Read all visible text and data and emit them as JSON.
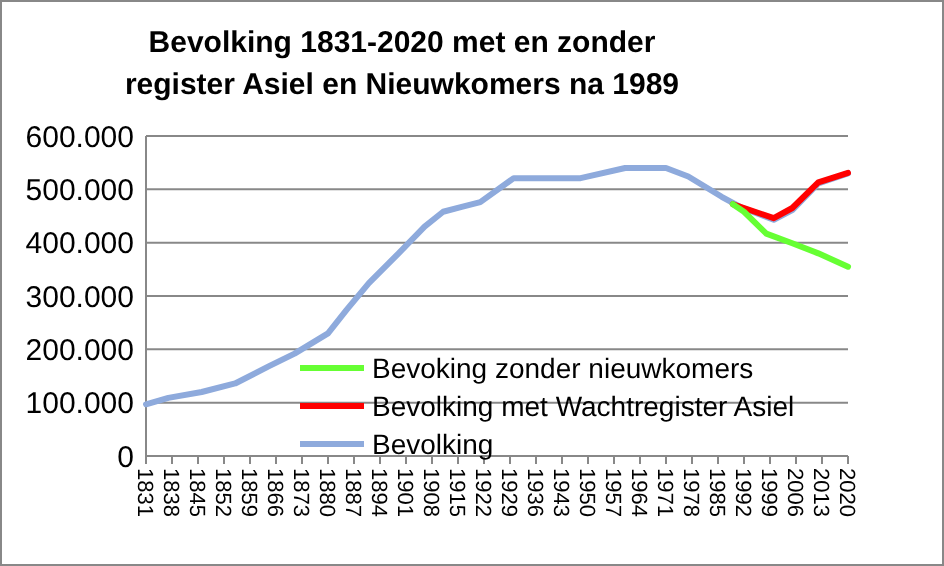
{
  "chart_data": {
    "type": "line",
    "title": "Bevolking 1831-2020 met en zonder\nregister  Asiel en Nieuwkomers na 1989",
    "xlim": [
      1831,
      2020
    ],
    "xticks": [
      1831,
      1838,
      1845,
      1852,
      1859,
      1866,
      1873,
      1880,
      1887,
      1894,
      1901,
      1908,
      1915,
      1922,
      1929,
      1936,
      1943,
      1950,
      1957,
      1964,
      1971,
      1978,
      1985,
      1992,
      1999,
      2006,
      2013,
      2020
    ],
    "ylim": [
      0,
      600000
    ],
    "yticks": [
      {
        "value": 0,
        "label": "0"
      },
      {
        "value": 100000,
        "label": "100.000"
      },
      {
        "value": 200000,
        "label": "200.000"
      },
      {
        "value": 300000,
        "label": "300.000"
      },
      {
        "value": 400000,
        "label": "400.000"
      },
      {
        "value": 500000,
        "label": "500.000"
      },
      {
        "value": 600000,
        "label": "600.000"
      }
    ],
    "grid": "y",
    "legend": "bottom right",
    "marker": "none",
    "line_style": "solid",
    "series": [
      {
        "name": "Bevoking zonder nieuwkomers",
        "color": "#66ff33",
        "x": [
          1989,
          1992,
          1998,
          2005,
          2012,
          2020
        ],
        "values": [
          472000,
          458000,
          417000,
          399000,
          380000,
          355000
        ]
      },
      {
        "name": "Bevolking met Wachtregister Asiel",
        "color": "#ff0000",
        "x": [
          1989,
          1992,
          2000,
          2005,
          2012,
          2020
        ],
        "values": [
          472000,
          465000,
          446000,
          465000,
          513000,
          531000
        ]
      },
      {
        "name": "Bevolking",
        "color": "#8eaadc",
        "x": [
          1831,
          1837,
          1846,
          1855,
          1864,
          1871,
          1880,
          1885,
          1891,
          1899,
          1906,
          1911,
          1916,
          1921,
          1930,
          1948,
          1960,
          1971,
          1977,
          1986,
          1991,
          2000,
          2005,
          2012,
          2020
        ],
        "values": [
          97000,
          109000,
          120000,
          136000,
          168000,
          192000,
          230000,
          274000,
          324000,
          380000,
          430000,
          458000,
          467000,
          476000,
          521000,
          521000,
          540000,
          540000,
          524000,
          486000,
          467000,
          443000,
          461000,
          511000,
          530000
        ]
      }
    ]
  }
}
